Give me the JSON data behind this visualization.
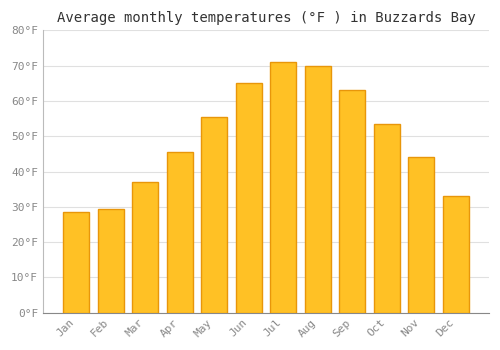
{
  "title": "Average monthly temperatures (°F ) in Buzzards Bay",
  "months": [
    "Jan",
    "Feb",
    "Mar",
    "Apr",
    "May",
    "Jun",
    "Jul",
    "Aug",
    "Sep",
    "Oct",
    "Nov",
    "Dec"
  ],
  "values": [
    28.5,
    29.5,
    37,
    45.5,
    55.5,
    65,
    71,
    70,
    63,
    53.5,
    44,
    33
  ],
  "bar_color": "#FFC125",
  "bar_edge_color": "#E8960A",
  "background_color": "#FFFFFF",
  "grid_color": "#E0E0E0",
  "ylim": [
    0,
    80
  ],
  "yticks": [
    0,
    10,
    20,
    30,
    40,
    50,
    60,
    70,
    80
  ],
  "ytick_labels": [
    "0°F",
    "10°F",
    "20°F",
    "30°F",
    "40°F",
    "50°F",
    "60°F",
    "70°F",
    "80°F"
  ],
  "tick_color": "#888888",
  "title_fontsize": 10,
  "tick_fontsize": 8,
  "font_family": "monospace",
  "bar_width": 0.75
}
